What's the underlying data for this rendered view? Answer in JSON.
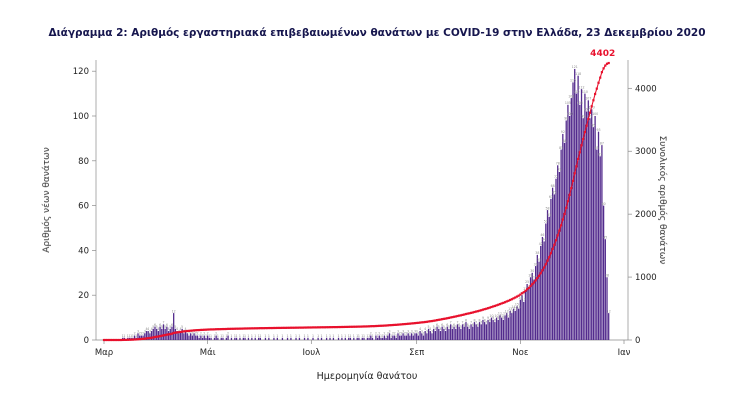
{
  "title": "Διάγραμμα 2: Αριθμός εργαστηριακά επιβεβαιωμένων θανάτων με COVID-19 στην Ελλάδα, 23 Δεκεμβρίου 2020",
  "chart_data": {
    "type": "bar+line",
    "xlabel": "Ημερομηνία θανάτου",
    "x_domain_days": 307,
    "x_ticks": [
      {
        "day": 0,
        "label": "Μαρ"
      },
      {
        "day": 61,
        "label": "Μάι"
      },
      {
        "day": 122,
        "label": "Ιουλ"
      },
      {
        "day": 184,
        "label": "Σεπ"
      },
      {
        "day": 245,
        "label": "Νοε"
      },
      {
        "day": 306,
        "label": "Ιαν"
      }
    ],
    "left_axis": {
      "label": "Αριθμός νέων θανάτων",
      "ticks": [
        0,
        20,
        40,
        60,
        80,
        100,
        120
      ],
      "plot_max": 125
    },
    "right_axis": {
      "label": "Συνολικός αριθμός θανάτων",
      "ticks": [
        0,
        1000,
        2000,
        3000,
        4000
      ],
      "plot_max": 4450
    },
    "series": [
      {
        "name": "daily_deaths",
        "type": "bar",
        "color": "#532b8d",
        "values": [
          0,
          0,
          0,
          0,
          0,
          0,
          0,
          0,
          0,
          0,
          0,
          1,
          1,
          0,
          1,
          1,
          1,
          1,
          2,
          1,
          3,
          2,
          2,
          2,
          3,
          4,
          4,
          3,
          4,
          5,
          6,
          5,
          4,
          6,
          5,
          7,
          5,
          6,
          4,
          5,
          6,
          12,
          5,
          4,
          3,
          4,
          5,
          3,
          4,
          3,
          2,
          3,
          2,
          3,
          2,
          2,
          1,
          2,
          1,
          2,
          1,
          2,
          1,
          1,
          0,
          1,
          2,
          1,
          0,
          1,
          1,
          0,
          1,
          2,
          0,
          1,
          0,
          1,
          1,
          0,
          1,
          0,
          1,
          1,
          0,
          1,
          0,
          1,
          0,
          1,
          0,
          1,
          1,
          0,
          0,
          1,
          0,
          1,
          0,
          0,
          1,
          0,
          1,
          0,
          0,
          1,
          0,
          0,
          1,
          0,
          1,
          0,
          0,
          1,
          0,
          1,
          0,
          0,
          1,
          0,
          1,
          0,
          0,
          1,
          0,
          0,
          1,
          0,
          1,
          0,
          0,
          1,
          0,
          1,
          0,
          1,
          0,
          0,
          1,
          0,
          1,
          0,
          1,
          0,
          1,
          1,
          0,
          1,
          0,
          1,
          1,
          0,
          1,
          1,
          0,
          1,
          1,
          2,
          1,
          0,
          2,
          1,
          2,
          1,
          1,
          2,
          1,
          2,
          3,
          1,
          2,
          2,
          1,
          3,
          2,
          2,
          3,
          2,
          2,
          3,
          2,
          3,
          2,
          3,
          3,
          2,
          4,
          3,
          2,
          4,
          3,
          5,
          4,
          3,
          5,
          4,
          6,
          5,
          4,
          6,
          5,
          4,
          6,
          5,
          7,
          5,
          6,
          5,
          7,
          6,
          5,
          7,
          6,
          8,
          6,
          5,
          7,
          6,
          8,
          7,
          6,
          8,
          7,
          9,
          8,
          7,
          9,
          8,
          10,
          9,
          8,
          10,
          9,
          11,
          10,
          9,
          11,
          12,
          10,
          13,
          12,
          14,
          13,
          15,
          14,
          18,
          20,
          17,
          22,
          25,
          23,
          28,
          30,
          27,
          33,
          38,
          35,
          42,
          46,
          44,
          52,
          58,
          55,
          63,
          68,
          65,
          72,
          78,
          75,
          85,
          92,
          88,
          98,
          105,
          100,
          108,
          115,
          121,
          110,
          118,
          105,
          112,
          99,
          110,
          102,
          107,
          99,
          103,
          95,
          100,
          85,
          93,
          82,
          87,
          60,
          45,
          28,
          12
        ]
      },
      {
        "name": "cumulative_deaths",
        "type": "line",
        "color": "#e8112d",
        "final_value": 4402
      }
    ],
    "annotation": {
      "text": "4402",
      "color": "#e8112d"
    }
  }
}
